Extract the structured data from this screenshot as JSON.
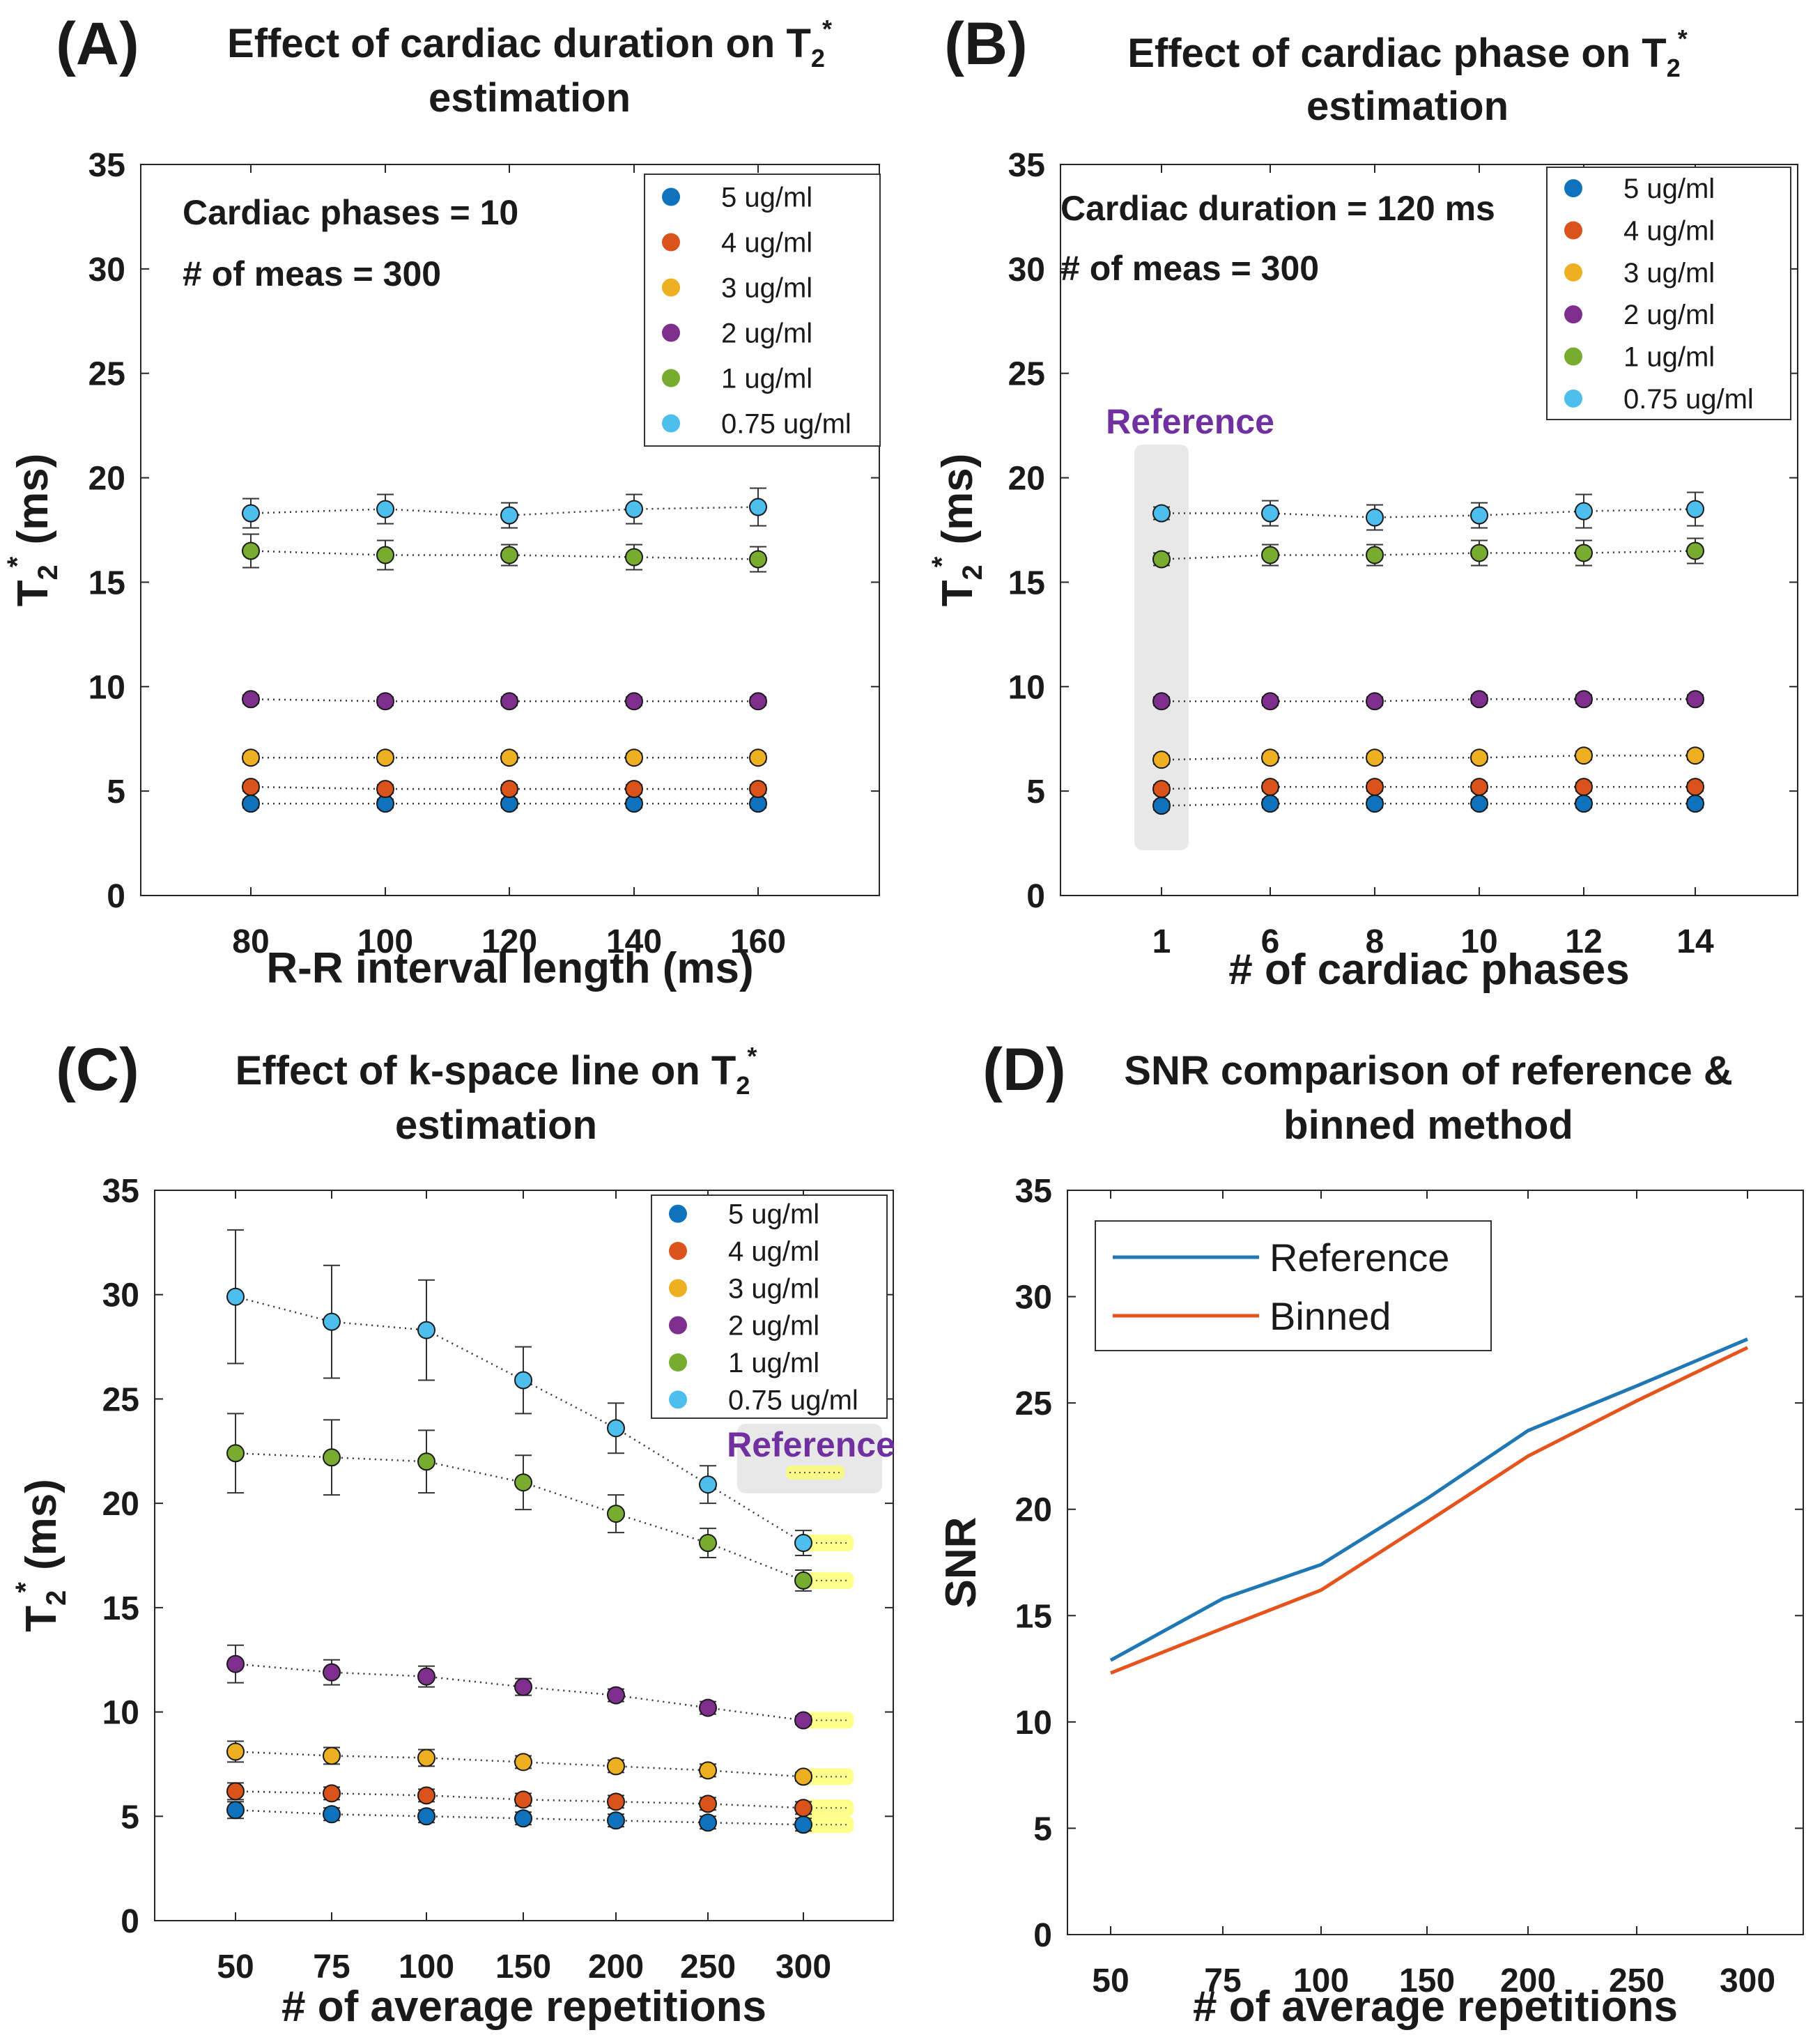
{
  "colors": {
    "5 ug/ml": "#0f72bd",
    "4 ug/ml": "#d9531a",
    "3 ug/ml": "#eeb020",
    "2 ug/ml": "#7e2f8e",
    "1 ug/ml": "#77ac30",
    "0.75 ug/ml": "#4dbeee",
    "reference_line": "#1f77b4",
    "binned_line": "#e5541c",
    "reference_text": "#7030a0",
    "highlight": "#ffff66"
  },
  "chart_data": [
    {
      "id": "A",
      "panel_label": "(A)",
      "type": "scatter",
      "title": [
        "Effect of cardiac duration on T",
        "estimation"
      ],
      "title_sub": "2",
      "title_sup": "*",
      "xlabel": "R-R interval length (ms)",
      "ylabel": "T",
      "ylabel_sub": "2",
      "ylabel_sup": "*",
      "ylabel_unit": " (ms)",
      "ylim": [
        0,
        35
      ],
      "yticks": [
        "0",
        "5",
        "10",
        "15",
        "20",
        "25",
        "30",
        "35"
      ],
      "categories": [
        "80",
        "100",
        "120",
        "140",
        "160"
      ],
      "annotations": [
        "Cardiac phases = 10",
        "# of meas = 300"
      ],
      "legend": [
        "5 ug/ml",
        "4 ug/ml",
        "3 ug/ml",
        "2 ug/ml",
        "1 ug/ml",
        "0.75 ug/ml"
      ],
      "series": [
        {
          "name": "5 ug/ml",
          "values": [
            4.4,
            4.4,
            4.4,
            4.4,
            4.4
          ],
          "err": [
            0.2,
            0.2,
            0.2,
            0.2,
            0.2
          ]
        },
        {
          "name": "4 ug/ml",
          "values": [
            5.2,
            5.1,
            5.1,
            5.1,
            5.1
          ],
          "err": [
            0.2,
            0.2,
            0.2,
            0.2,
            0.2
          ]
        },
        {
          "name": "3 ug/ml",
          "values": [
            6.6,
            6.6,
            6.6,
            6.6,
            6.6
          ],
          "err": [
            0.2,
            0.2,
            0.2,
            0.2,
            0.2
          ]
        },
        {
          "name": "2 ug/ml",
          "values": [
            9.4,
            9.3,
            9.3,
            9.3,
            9.3
          ],
          "err": [
            0.2,
            0.2,
            0.2,
            0.2,
            0.2
          ]
        },
        {
          "name": "1 ug/ml",
          "values": [
            16.5,
            16.3,
            16.3,
            16.2,
            16.1
          ],
          "err": [
            0.8,
            0.7,
            0.5,
            0.6,
            0.6
          ]
        },
        {
          "name": "0.75 ug/ml",
          "values": [
            18.3,
            18.5,
            18.2,
            18.5,
            18.6
          ],
          "err": [
            0.7,
            0.7,
            0.6,
            0.7,
            0.9
          ]
        }
      ]
    },
    {
      "id": "B",
      "panel_label": "(B)",
      "type": "scatter",
      "title": [
        "Effect of cardiac phase on T",
        "estimation"
      ],
      "title_sub": "2",
      "title_sup": "*",
      "xlabel": "#   of cardiac phases",
      "ylabel": "T",
      "ylabel_sub": "2",
      "ylabel_sup": "*",
      "ylabel_unit": " (ms)",
      "ylim": [
        0,
        35
      ],
      "yticks": [
        "0",
        "5",
        "10",
        "15",
        "20",
        "25",
        "30",
        "35"
      ],
      "categories": [
        "1",
        "6",
        "8",
        "10",
        "12",
        "14"
      ],
      "annotations": [
        "Cardiac duration = 120 ms",
        "# of meas = 300"
      ],
      "reference_label": "Reference",
      "legend": [
        "5 ug/ml",
        "4 ug/ml",
        "3 ug/ml",
        "2 ug/ml",
        "1 ug/ml",
        "0.75 ug/ml"
      ],
      "series": [
        {
          "name": "5 ug/ml",
          "values": [
            4.3,
            4.4,
            4.4,
            4.4,
            4.4,
            4.4
          ],
          "err": [
            0.2,
            0.2,
            0.2,
            0.2,
            0.2,
            0.2
          ]
        },
        {
          "name": "4 ug/ml",
          "values": [
            5.1,
            5.2,
            5.2,
            5.2,
            5.2,
            5.2
          ],
          "err": [
            0.2,
            0.2,
            0.2,
            0.2,
            0.2,
            0.2
          ]
        },
        {
          "name": "3 ug/ml",
          "values": [
            6.5,
            6.6,
            6.6,
            6.6,
            6.7,
            6.7
          ],
          "err": [
            0.2,
            0.2,
            0.2,
            0.2,
            0.2,
            0.2
          ]
        },
        {
          "name": "2 ug/ml",
          "values": [
            9.3,
            9.3,
            9.3,
            9.4,
            9.4,
            9.4
          ],
          "err": [
            0.2,
            0.2,
            0.2,
            0.2,
            0.2,
            0.2
          ]
        },
        {
          "name": "1 ug/ml",
          "values": [
            16.1,
            16.3,
            16.3,
            16.4,
            16.4,
            16.5
          ],
          "err": [
            0.3,
            0.5,
            0.5,
            0.6,
            0.6,
            0.6
          ]
        },
        {
          "name": "0.75 ug/ml",
          "values": [
            18.3,
            18.3,
            18.1,
            18.2,
            18.4,
            18.5
          ],
          "err": [
            0.3,
            0.6,
            0.6,
            0.6,
            0.8,
            0.8
          ]
        }
      ]
    },
    {
      "id": "C",
      "panel_label": "(C)",
      "type": "scatter",
      "title": [
        "Effect of k-space line on T",
        "estimation"
      ],
      "title_sub": "2",
      "title_sup": "*",
      "xlabel": "#   of average repetitions",
      "ylabel": "T",
      "ylabel_sub": "2",
      "ylabel_sup": "*",
      "ylabel_unit": " (ms)",
      "ylim": [
        0,
        35
      ],
      "yticks": [
        "0",
        "5",
        "10",
        "15",
        "20",
        "25",
        "30",
        "35"
      ],
      "categories": [
        "50",
        "75",
        "100",
        "150",
        "200",
        "250",
        "300"
      ],
      "reference_label": "Reference",
      "legend": [
        "5 ug/ml",
        "4 ug/ml",
        "3 ug/ml",
        "2 ug/ml",
        "1 ug/ml",
        "0.75 ug/ml"
      ],
      "series": [
        {
          "name": "5 ug/ml",
          "values": [
            5.3,
            5.1,
            5.0,
            4.9,
            4.8,
            4.7,
            4.6
          ],
          "err": [
            0.4,
            0.3,
            0.3,
            0.3,
            0.3,
            0.3,
            0.3
          ]
        },
        {
          "name": "4 ug/ml",
          "values": [
            6.2,
            6.1,
            6.0,
            5.8,
            5.7,
            5.6,
            5.4
          ],
          "err": [
            0.4,
            0.3,
            0.3,
            0.3,
            0.3,
            0.3,
            0.3
          ]
        },
        {
          "name": "3 ug/ml",
          "values": [
            8.1,
            7.9,
            7.8,
            7.6,
            7.4,
            7.2,
            6.9
          ],
          "err": [
            0.5,
            0.4,
            0.4,
            0.3,
            0.3,
            0.3,
            0.2
          ]
        },
        {
          "name": "2 ug/ml",
          "values": [
            12.3,
            11.9,
            11.7,
            11.2,
            10.8,
            10.2,
            9.6
          ],
          "err": [
            0.9,
            0.6,
            0.5,
            0.4,
            0.3,
            0.3,
            0.2
          ]
        },
        {
          "name": "1 ug/ml",
          "values": [
            22.4,
            22.2,
            22.0,
            21.0,
            19.5,
            18.1,
            16.3
          ],
          "err": [
            1.9,
            1.8,
            1.5,
            1.3,
            0.9,
            0.7,
            0.5
          ]
        },
        {
          "name": "0.75 ug/ml",
          "values": [
            29.9,
            28.7,
            28.3,
            25.9,
            23.6,
            20.9,
            18.1
          ],
          "err": [
            3.2,
            2.7,
            2.4,
            1.6,
            1.2,
            0.9,
            0.6
          ]
        }
      ]
    },
    {
      "id": "D",
      "panel_label": "(D)",
      "type": "line",
      "title": [
        "SNR comparison of reference &",
        "binned method"
      ],
      "xlabel": "#   of average repetitions",
      "ylabel": "SNR",
      "ylim": [
        0,
        35
      ],
      "yticks": [
        "0",
        "5",
        "10",
        "15",
        "20",
        "25",
        "30",
        "35"
      ],
      "categories": [
        "50",
        "75",
        "100",
        "150",
        "200",
        "250",
        "300"
      ],
      "legend": [
        "Reference",
        "Binned"
      ],
      "series": [
        {
          "name": "Reference",
          "values": [
            12.9,
            15.8,
            17.4,
            20.5,
            23.7,
            25.8,
            28.0
          ]
        },
        {
          "name": "Binned",
          "values": [
            12.3,
            14.4,
            16.2,
            19.4,
            22.5,
            25.1,
            27.6
          ]
        }
      ]
    }
  ]
}
